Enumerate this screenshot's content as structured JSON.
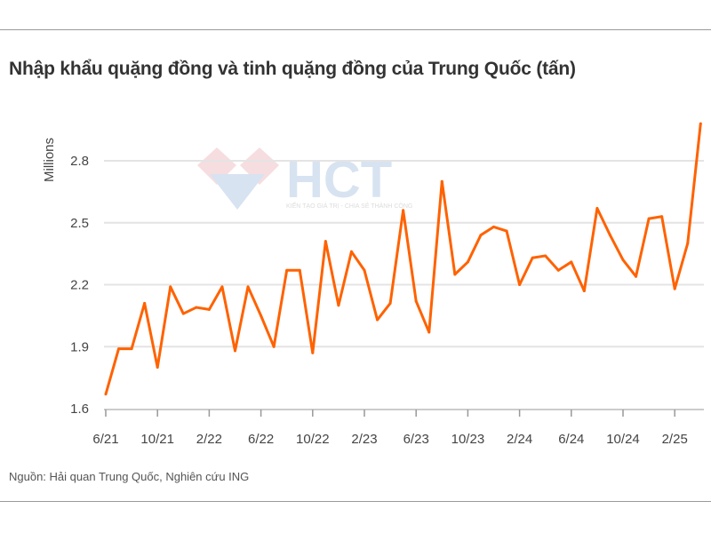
{
  "watermark": {
    "text": "HCT",
    "tagline": "KIẾN TẠO GIÁ TRỊ - CHIA SẺ THÀNH CÔNG"
  },
  "source": "Nguồn: Hải quan Trung Quốc, Nghiên cứu ING",
  "chart_data": {
    "type": "line",
    "title": "Nhập khẩu quặng đồng và tinh quặng đồng của Trung Quốc (tấn)",
    "ylabel": "Millions",
    "xlabel": "",
    "ylim": [
      1.6,
      3.0
    ],
    "yticks": [
      1.6,
      1.9,
      2.2,
      2.5,
      2.8
    ],
    "ytick_labels": [
      "1.6",
      "1.9",
      "2.2",
      "2.5",
      "2.8"
    ],
    "xtick_labels": [
      "6/21",
      "10/21",
      "2/22",
      "6/22",
      "10/22",
      "2/23",
      "6/23",
      "10/23",
      "2/24",
      "6/24",
      "10/24",
      "2/25"
    ],
    "grid": "horizontal",
    "color": "#ff6200",
    "x": [
      "6/21",
      "7/21",
      "8/21",
      "9/21",
      "10/21",
      "11/21",
      "12/21",
      "1/22",
      "2/22",
      "3/22",
      "4/22",
      "5/22",
      "6/22",
      "7/22",
      "8/22",
      "9/22",
      "10/22",
      "11/22",
      "12/22",
      "1/23",
      "2/23",
      "3/23",
      "4/23",
      "5/23",
      "6/23",
      "7/23",
      "8/23",
      "9/23",
      "10/23",
      "11/23",
      "12/23",
      "1/24",
      "2/24",
      "3/24",
      "4/24",
      "5/24",
      "6/24",
      "7/24",
      "8/24",
      "9/24",
      "10/24",
      "11/24",
      "12/24",
      "1/25",
      "2/25",
      "3/25",
      "4/25"
    ],
    "values": [
      1.67,
      1.89,
      1.89,
      2.11,
      1.8,
      2.19,
      2.06,
      2.09,
      2.08,
      2.19,
      1.88,
      2.19,
      2.05,
      1.9,
      2.27,
      2.27,
      1.87,
      2.41,
      2.1,
      2.36,
      2.27,
      2.03,
      2.11,
      2.56,
      2.12,
      1.97,
      2.7,
      2.25,
      2.31,
      2.44,
      2.48,
      2.46,
      2.2,
      2.33,
      2.34,
      2.27,
      2.31,
      2.17,
      2.57,
      2.44,
      2.32,
      2.24,
      2.52,
      2.53,
      2.18,
      2.4,
      2.98
    ]
  }
}
